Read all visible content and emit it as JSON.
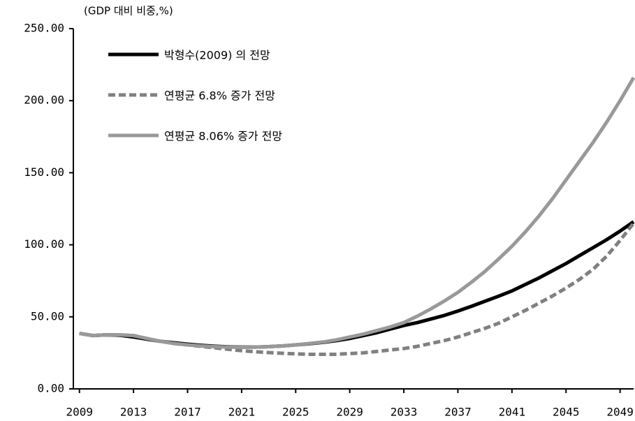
{
  "chart_data": {
    "type": "line",
    "y_label": "(GDP 대비 비중,%)",
    "x": [
      2009,
      2010,
      2011,
      2012,
      2013,
      2014,
      2015,
      2016,
      2017,
      2018,
      2019,
      2020,
      2021,
      2022,
      2023,
      2024,
      2025,
      2026,
      2027,
      2028,
      2029,
      2030,
      2031,
      2032,
      2033,
      2034,
      2035,
      2036,
      2037,
      2038,
      2039,
      2040,
      2041,
      2042,
      2043,
      2044,
      2045,
      2046,
      2047,
      2048,
      2049,
      2050
    ],
    "series": [
      {
        "name": "박형수(2009) 의 전망",
        "color": "#000000",
        "linestyle": "solid",
        "values": [
          38.5,
          37,
          37.5,
          37.2,
          36,
          34.5,
          33,
          32,
          31,
          30.2,
          29.6,
          29.2,
          29,
          29,
          29.3,
          29.8,
          30.5,
          31.3,
          32.3,
          33.5,
          35,
          37,
          39,
          41.5,
          44,
          46,
          48.5,
          51,
          54,
          57.3,
          60.8,
          64.3,
          68,
          72.5,
          77,
          82,
          87,
          92.5,
          98,
          103.5,
          109.5,
          116
        ]
      },
      {
        "name": "연평균 6.8% 증가 전망",
        "color": "#808080",
        "linestyle": "dashed",
        "values": [
          38.5,
          37,
          37.5,
          37.5,
          37,
          35,
          33,
          31.5,
          30.5,
          29.5,
          28.5,
          27.5,
          26.5,
          25.8,
          25.2,
          24.7,
          24.3,
          24,
          24,
          24,
          24.5,
          25,
          26,
          27,
          28,
          29.5,
          31.5,
          33.5,
          36,
          39,
          42,
          45.5,
          50,
          54.5,
          59.5,
          64.5,
          70,
          76,
          83,
          92,
          103,
          115
        ]
      },
      {
        "name": "연평균 8.06% 증가 전망",
        "color": "#999999",
        "linestyle": "solid",
        "values": [
          38.5,
          37,
          37.5,
          37.5,
          37,
          35,
          33,
          31.5,
          30.5,
          29.8,
          29.3,
          29,
          28.9,
          29,
          29.3,
          29.8,
          30.5,
          31.5,
          32.5,
          34,
          36,
          38,
          40.5,
          43,
          46,
          50.5,
          55.5,
          61,
          67,
          74,
          81.5,
          90,
          99,
          109,
          120,
          132,
          145,
          158,
          171,
          185,
          200,
          216
        ]
      }
    ],
    "xlim": [
      2008.55,
      2050
    ],
    "xticks": [
      2009,
      2013,
      2017,
      2021,
      2025,
      2029,
      2033,
      2037,
      2041,
      2045,
      2049
    ],
    "ylim": [
      0,
      250
    ],
    "yticks": [
      {
        "value": 0,
        "label": "0.00"
      },
      {
        "value": 50,
        "label": "50.00"
      },
      {
        "value": 100,
        "label": "100.00"
      },
      {
        "value": 150,
        "label": "150.00"
      },
      {
        "value": 200,
        "label": "200.00"
      },
      {
        "value": 250,
        "label": "250.00"
      }
    ],
    "legend": "upper left",
    "grid": false
  }
}
